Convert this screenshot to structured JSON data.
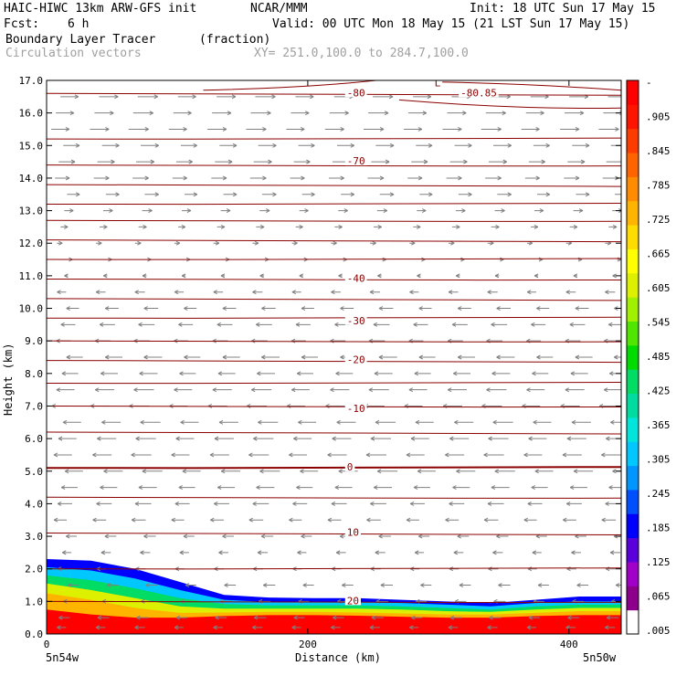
{
  "header": {
    "model": "HAIC-HIWC 13km ARW-GFS init",
    "org": "NCAR/MMM",
    "init": "Init: 18 UTC Sun 17 May 15",
    "fcst_label": "Fcst:",
    "fcst_value": "6 h",
    "valid": "Valid: 00 UTC Mon 18 May 15 (21 LST Sun 17 May 15)",
    "field": "Boundary Layer Tracer",
    "field_units": "(fraction)",
    "overlay": "Circulation vectors",
    "xsection": "XY= 251.0,100.0 to 284.7,100.0"
  },
  "colors": {
    "contour": "#8b0000",
    "vector": "#808080",
    "colorbar": [
      "#ffffff",
      "#8c008c",
      "#a000c8",
      "#5a00dc",
      "#0000ff",
      "#0050ff",
      "#0096ff",
      "#00c8ff",
      "#00e6dc",
      "#00dca0",
      "#00dc64",
      "#00dc00",
      "#50e600",
      "#a0f000",
      "#dcf000",
      "#ffff00",
      "#ffdc00",
      "#ffb400",
      "#ff8c00",
      "#ff6400",
      "#ff3c00",
      "#ff1400",
      "#ff0000"
    ]
  },
  "chart_data": {
    "type": "heatmap",
    "xlabel": "Distance (km)",
    "ylabel": "Height (km)",
    "xlim": [
      0,
      440
    ],
    "ylim": [
      0,
      17
    ],
    "x_ticks": [
      "0",
      "200",
      "400"
    ],
    "x_tick_values": [
      0,
      200,
      400
    ],
    "x_endpoints": {
      "left": "5n54w",
      "right": "5n50w"
    },
    "y_ticks": [
      "0.0",
      "1.0",
      "2.0",
      "3.0",
      "4.0",
      "5.0",
      "6.0",
      "7.0",
      "8.0",
      "9.0",
      "10.0",
      "11.0",
      "12.0",
      "13.0",
      "14.0",
      "15.0",
      "16.0",
      "17.0"
    ],
    "colorbar_labels": [
      "-",
      ".905",
      ".845",
      ".785",
      ".725",
      ".665",
      ".605",
      ".545",
      ".485",
      ".425",
      ".365",
      ".305",
      ".245",
      ".185",
      ".125",
      ".065",
      ".005"
    ],
    "contour_labels": [
      {
        "text": "-80",
        "x": 230,
        "y": 16.6
      },
      {
        "text": "-80.85",
        "x": 317,
        "y": 16.6
      },
      {
        "text": "L",
        "x": 297,
        "y": 16.9
      },
      {
        "text": "-70",
        "x": 230,
        "y": 14.5
      },
      {
        "text": "-40",
        "x": 230,
        "y": 10.9
      },
      {
        "text": "-30",
        "x": 230,
        "y": 9.6
      },
      {
        "text": "-20",
        "x": 230,
        "y": 8.4
      },
      {
        "text": "-10",
        "x": 230,
        "y": 6.9
      },
      {
        "text": "0",
        "x": 230,
        "y": 5.1
      },
      {
        "text": "10",
        "x": 230,
        "y": 3.1
      },
      {
        "text": "20",
        "x": 230,
        "y": 1.0
      }
    ],
    "contour_levels": [
      16.6,
      15.2,
      14.4,
      13.8,
      13.2,
      12.7,
      12.1,
      11.5,
      10.9,
      10.3,
      9.7,
      9.0,
      8.4,
      7.7,
      7.0,
      6.2,
      5.1,
      4.2,
      3.1,
      2.0,
      1.0
    ],
    "tracer_bands": [
      {
        "level": 0.005,
        "top": [
          2.3,
          2.25,
          2.0,
          1.6,
          1.2,
          1.12,
          1.1,
          1.1,
          1.05,
          1.0,
          0.95,
          1.05,
          1.15,
          1.15
        ]
      },
      {
        "level": 0.065,
        "top": [
          2.05,
          1.95,
          1.7,
          1.35,
          1.05,
          0.98,
          0.98,
          0.98,
          0.95,
          0.9,
          0.85,
          0.95,
          1.0,
          1.0
        ]
      },
      {
        "level": 0.185,
        "top": [
          1.8,
          1.65,
          1.4,
          1.1,
          0.92,
          0.88,
          0.88,
          0.88,
          0.85,
          0.8,
          0.75,
          0.85,
          0.9,
          0.9
        ]
      },
      {
        "level": 0.365,
        "top": [
          1.55,
          1.35,
          1.1,
          0.85,
          0.78,
          0.78,
          0.78,
          0.78,
          0.75,
          0.7,
          0.68,
          0.75,
          0.8,
          0.8
        ]
      },
      {
        "level": 0.605,
        "top": [
          1.25,
          1.05,
          0.8,
          0.65,
          0.66,
          0.68,
          0.68,
          0.66,
          0.63,
          0.6,
          0.6,
          0.65,
          0.7,
          0.7
        ]
      },
      {
        "level": 0.905,
        "top": [
          0.75,
          0.6,
          0.5,
          0.5,
          0.55,
          0.58,
          0.58,
          0.56,
          0.53,
          0.5,
          0.5,
          0.55,
          0.58,
          0.58
        ]
      }
    ],
    "tracer_band_x": [
      0,
      34,
      68,
      102,
      136,
      170,
      204,
      238,
      272,
      306,
      340,
      374,
      408,
      440
    ],
    "vector_rows": [
      {
        "y": 16.5,
        "u": 1.0
      },
      {
        "y": 16.0,
        "u": 1.0
      },
      {
        "y": 15.5,
        "u": 1.0
      },
      {
        "y": 15.0,
        "u": 0.9
      },
      {
        "y": 14.5,
        "u": 0.9
      },
      {
        "y": 14.0,
        "u": 0.8
      },
      {
        "y": 13.5,
        "u": 0.7
      },
      {
        "y": 13.0,
        "u": 0.5
      },
      {
        "y": 12.5,
        "u": 0.4
      },
      {
        "y": 12.0,
        "u": 0.3
      },
      {
        "y": 11.5,
        "u": 0.2
      },
      {
        "y": 11.0,
        "u": -0.2
      },
      {
        "y": 10.5,
        "u": -0.5
      },
      {
        "y": 10.0,
        "u": -0.7
      },
      {
        "y": 9.5,
        "u": -0.8
      },
      {
        "y": 9.0,
        "u": -0.8
      },
      {
        "y": 8.5,
        "u": -0.9
      },
      {
        "y": 8.0,
        "u": -0.9
      },
      {
        "y": 7.5,
        "u": -1.0
      },
      {
        "y": 7.0,
        "u": -1.0
      },
      {
        "y": 6.5,
        "u": -1.0
      },
      {
        "y": 6.0,
        "u": -1.0
      },
      {
        "y": 5.5,
        "u": -1.0
      },
      {
        "y": 5.0,
        "u": -1.0
      },
      {
        "y": 4.5,
        "u": -0.9
      },
      {
        "y": 4.0,
        "u": -0.8
      },
      {
        "y": 3.5,
        "u": -0.7
      },
      {
        "y": 3.0,
        "u": -0.6
      },
      {
        "y": 2.5,
        "u": -0.5
      },
      {
        "y": 2.0,
        "u": -0.5
      },
      {
        "y": 1.5,
        "u": -0.6
      },
      {
        "y": 1.0,
        "u": -0.6
      },
      {
        "y": 0.5,
        "u": -0.6
      },
      {
        "y": 0.2,
        "u": -0.5
      }
    ],
    "vector_x": [
      10,
      40,
      70,
      100,
      130,
      160,
      190,
      220,
      250,
      280,
      310,
      340,
      370,
      400,
      430
    ]
  }
}
